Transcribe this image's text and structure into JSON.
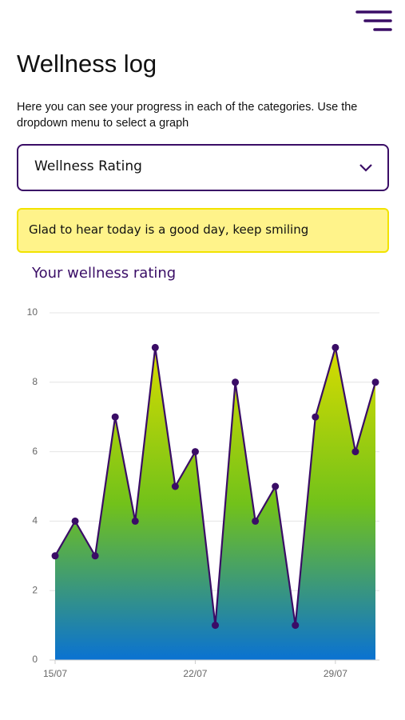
{
  "header": {
    "title": "Wellness log"
  },
  "description": "Here you can see your progress in each of the categories. Use the dropdown menu to select a graph",
  "dropdown": {
    "selected": "Wellness Rating"
  },
  "message": "Glad to hear today is a good day, keep smiling",
  "chart_data": {
    "type": "area",
    "title": "Your wellness rating",
    "categories": [
      "15/07",
      null,
      null,
      null,
      null,
      null,
      null,
      "22/07",
      null,
      null,
      null,
      null,
      null,
      null,
      "29/07",
      null,
      null
    ],
    "series": [
      {
        "color": "#3a0d66",
        "values": [
          3,
          4,
          3,
          7,
          4,
          9,
          5,
          6,
          1,
          8,
          4,
          5,
          1,
          7,
          9,
          6,
          8
        ]
      }
    ],
    "fill_gradient": [
      "#d8dc00",
      "#72c21a",
      "#0a72d2"
    ],
    "ylim": [
      0,
      10
    ],
    "yticks": [
      0,
      2,
      4,
      6,
      8,
      10
    ],
    "grid": true
  }
}
